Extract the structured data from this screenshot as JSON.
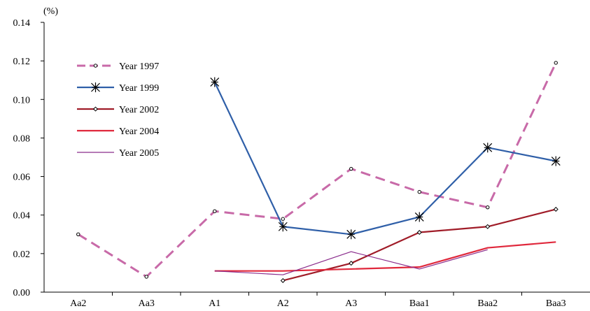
{
  "chart_data": {
    "type": "line",
    "title": "",
    "xlabel": "",
    "ylabel": "",
    "y_unit": "(%)",
    "categories": [
      "Aa2",
      "Aa3",
      "A1",
      "A2",
      "A3",
      "Baa1",
      "Baa2",
      "Baa3"
    ],
    "ylim": [
      0,
      0.14
    ],
    "yticks": [
      "0.00",
      "0.02",
      "0.04",
      "0.06",
      "0.08",
      "0.10",
      "0.12",
      "0.14"
    ],
    "grid": false,
    "legend_position": "top-left",
    "series": [
      {
        "name": "Year 1997",
        "color": "#c86aa8",
        "style": "dashed",
        "marker": "circle",
        "values": [
          0.03,
          0.008,
          0.042,
          0.038,
          0.064,
          0.052,
          0.044,
          0.119
        ]
      },
      {
        "name": "Year 1999",
        "color": "#2f5fa8",
        "style": "solid",
        "marker": "asterisk",
        "values": [
          null,
          null,
          0.109,
          0.034,
          0.03,
          0.039,
          0.075,
          0.068
        ]
      },
      {
        "name": "Year 2002",
        "color": "#a01c28",
        "style": "solid",
        "marker": "diamond",
        "values": [
          null,
          null,
          null,
          0.006,
          0.015,
          0.031,
          0.034,
          0.043
        ]
      },
      {
        "name": "Year 2004",
        "color": "#e0283c",
        "style": "solid",
        "marker": "none",
        "values": [
          null,
          null,
          0.011,
          0.011,
          0.012,
          0.013,
          0.023,
          0.026
        ]
      },
      {
        "name": "Year 2005",
        "color": "#8a2c8c",
        "style": "thin",
        "marker": "none",
        "values": [
          null,
          null,
          0.011,
          0.009,
          0.021,
          0.012,
          0.022,
          null
        ]
      }
    ]
  }
}
